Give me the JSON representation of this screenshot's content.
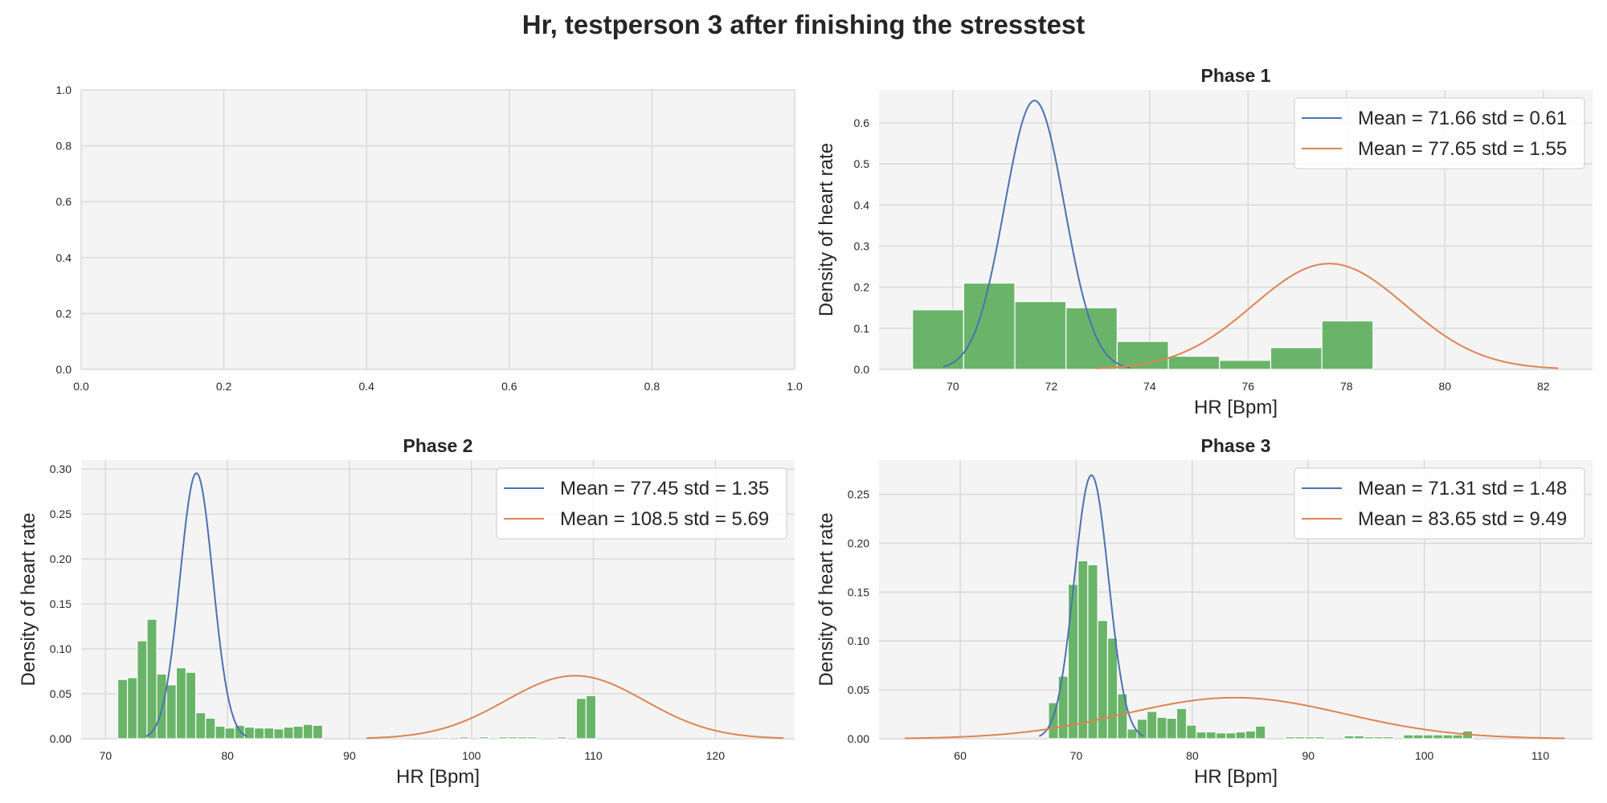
{
  "figure": {
    "title": "Hr, testperson 3 after finishing the stresstest"
  },
  "colors": {
    "bar": "#6ab46a",
    "bar_edge": "#ffffff",
    "normal1": "#4c72b0",
    "normal2": "#dd8452",
    "axes_bg": "#f4f4f4",
    "grid": "#d8d8d8"
  },
  "chart_data": [
    {
      "type": "empty",
      "title": "",
      "xlabel": "",
      "ylabel": "",
      "xlim": [
        0,
        1
      ],
      "ylim": [
        0,
        1
      ],
      "xticks": [
        0.0,
        0.2,
        0.4,
        0.6,
        0.8,
        1.0
      ],
      "yticks": [
        0.0,
        0.2,
        0.4,
        0.6,
        0.8,
        1.0
      ],
      "tick_decimals": 1,
      "grid": true
    },
    {
      "type": "bar",
      "title": "Phase 1",
      "xlabel": "HR [Bpm]",
      "ylabel": "Density of heart rate",
      "xlim": [
        68.5,
        83.0
      ],
      "ylim": [
        0,
        0.68
      ],
      "xticks": [
        70,
        72,
        74,
        76,
        78,
        80,
        82
      ],
      "yticks": [
        0.0,
        0.1,
        0.2,
        0.3,
        0.4,
        0.5,
        0.6
      ],
      "tick_decimals": 1,
      "bins": {
        "start": 69.18,
        "width": 1.04,
        "values": [
          0.145,
          0.21,
          0.165,
          0.15,
          0.068,
          0.032,
          0.022,
          0.053,
          0.118
        ]
      },
      "series": [
        {
          "name": "Mean = 71.66 std = 0.61",
          "mean": 71.66,
          "std": 0.61,
          "xrange": [
            69.8,
            73.6
          ]
        },
        {
          "name": "Mean = 77.65 std = 1.55",
          "mean": 77.65,
          "std": 1.55,
          "xrange": [
            72.9,
            82.3
          ]
        }
      ],
      "legend": "top-right",
      "grid": true
    },
    {
      "type": "bar",
      "title": "Phase 2",
      "xlabel": "HR [Bpm]",
      "ylabel": "Density of heart rate",
      "xlim": [
        68,
        126.5
      ],
      "ylim": [
        0,
        0.31
      ],
      "xticks": [
        70,
        80,
        90,
        100,
        110,
        120
      ],
      "yticks": [
        0.0,
        0.05,
        0.1,
        0.15,
        0.2,
        0.25,
        0.3
      ],
      "tick_decimals": 2,
      "bins": {
        "start": 71.0,
        "width": 0.8,
        "values": [
          0.066,
          0.068,
          0.109,
          0.133,
          0.072,
          0.06,
          0.079,
          0.074,
          0.029,
          0.023,
          0.014,
          0.012,
          0.015,
          0.013,
          0.012,
          0.012,
          0.011,
          0.013,
          0.014,
          0.016,
          0.015,
          0,
          0,
          0,
          0,
          0,
          0,
          0,
          0,
          0,
          0,
          0,
          0,
          0.0015,
          0,
          0.002,
          0,
          0.002,
          0,
          0.002,
          0.002,
          0.002,
          0.002,
          0,
          0,
          0.002,
          0,
          0.045,
          0.048
        ]
      },
      "series": [
        {
          "name": "Mean = 77.45 std = 1.35",
          "mean": 77.45,
          "std": 1.35,
          "xrange": [
            73.3,
            81.6
          ]
        },
        {
          "name": "Mean = 108.5 std = 5.69",
          "mean": 108.5,
          "std": 5.69,
          "xrange": [
            91.4,
            125.6
          ]
        }
      ],
      "legend": "top-right",
      "grid": true
    },
    {
      "type": "bar",
      "title": "Phase 3",
      "xlabel": "HR [Bpm]",
      "ylabel": "Density of heart rate",
      "xlim": [
        53,
        114.5
      ],
      "ylim": [
        0,
        0.285
      ],
      "xticks": [
        60,
        70,
        80,
        90,
        100,
        110
      ],
      "yticks": [
        0.0,
        0.05,
        0.1,
        0.15,
        0.2,
        0.25
      ],
      "tick_decimals": 2,
      "bins": {
        "start": 67.6,
        "width": 0.85,
        "values": [
          0.037,
          0.064,
          0.158,
          0.182,
          0.178,
          0.121,
          0.103,
          0.046,
          0.01,
          0.02,
          0.028,
          0.022,
          0.021,
          0.031,
          0.014,
          0.007,
          0.007,
          0.006,
          0.006,
          0.007,
          0.008,
          0.013,
          0,
          0,
          0.002,
          0.002,
          0.002,
          0.002,
          0,
          0,
          0.003,
          0.003,
          0.002,
          0.002,
          0.002,
          0,
          0.004,
          0.004,
          0.004,
          0.004,
          0.004,
          0.004,
          0.008
        ]
      },
      "series": [
        {
          "name": "Mean = 71.31 std = 1.48",
          "mean": 71.31,
          "std": 1.48,
          "xrange": [
            66.8,
            75.8
          ]
        },
        {
          "name": "Mean = 83.65 std = 9.49",
          "mean": 83.65,
          "std": 9.49,
          "xrange": [
            55.2,
            112.1
          ]
        }
      ],
      "legend": "top-right",
      "grid": true
    }
  ]
}
